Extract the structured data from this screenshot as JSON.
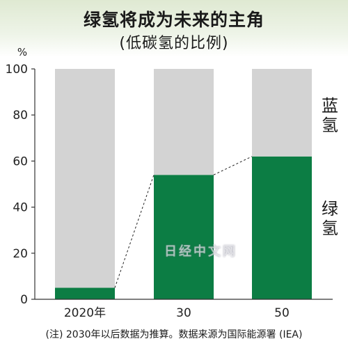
{
  "title": "绿氢将成为未来的主角",
  "subtitle": "(低碳氢的比例)",
  "footnote": "(注) 2030年以后数据为推算。数据来源为国际能源署 (IEA)",
  "watermark": "日经中文网",
  "colors": {
    "green": "#0c7d44",
    "gray": "#d3d3d3",
    "axis": "#333333"
  },
  "chart_data": {
    "type": "bar",
    "stacked": true,
    "categories": [
      "2020年",
      "30",
      "50"
    ],
    "series": [
      {
        "name": "绿氢",
        "values": [
          5,
          54,
          62
        ],
        "color": "#0c7d44"
      },
      {
        "name": "蓝氢",
        "values": [
          95,
          46,
          38
        ],
        "color": "#d3d3d3"
      }
    ],
    "yunit": "%",
    "ylim": [
      0,
      100
    ],
    "yticks": [
      0,
      20,
      40,
      60,
      80,
      100
    ],
    "series_labels_side": "right",
    "connector_lines": "dashed, joining tops of green segments"
  }
}
